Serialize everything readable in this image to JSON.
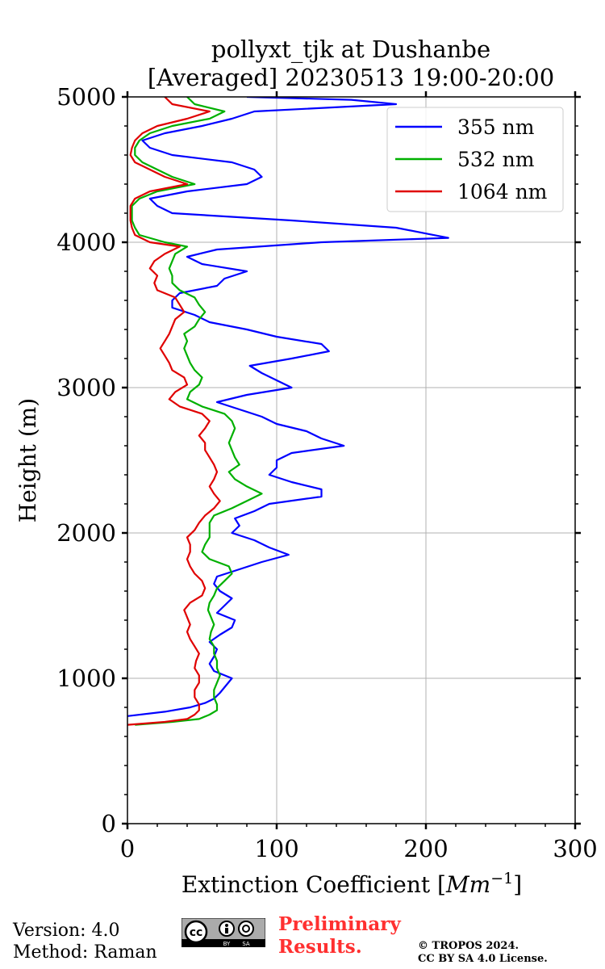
{
  "colors": {
    "s355": "#0000ff",
    "s532": "#00b000",
    "s1064": "#e00000",
    "grid": "#b0b0b0",
    "prelim": "#ff3030"
  },
  "footer": {
    "version": "Version: 4.0",
    "method": "Method: Raman",
    "preliminary_line1": "Preliminary",
    "preliminary_line2": "Results.",
    "copyright_line1": "© TROPOS 2024.",
    "copyright_line2": "CC BY SA 4.0 License.",
    "cc_text": "cc",
    "cc_by": "BY",
    "cc_sa": "SA"
  },
  "chart_data": {
    "type": "line",
    "title": "pollyxt_tjk at Dushanbe",
    "subtitle": "[Averaged] 20230513 19:00-20:00",
    "xlabel_main": "Extinction Coefficient [",
    "xlabel_unit": "Mm",
    "xlabel_exp": "−1",
    "xlabel_end": "]",
    "ylabel": "Height (m)",
    "xlim": [
      0,
      300
    ],
    "ylim": [
      0,
      5000
    ],
    "xticks": [
      0,
      100,
      200,
      300
    ],
    "yticks": [
      0,
      1000,
      2000,
      3000,
      4000,
      5000
    ],
    "grid": true,
    "legend_position": "top-right",
    "series": [
      {
        "name": "355 nm",
        "heights": [
          740,
          770,
          800,
          830,
          860,
          900,
          950,
          1000,
          1050,
          1100,
          1150,
          1200,
          1250,
          1300,
          1350,
          1400,
          1450,
          1500,
          1550,
          1600,
          1650,
          1700,
          1750,
          1800,
          1850,
          1900,
          1950,
          2000,
          2050,
          2100,
          2150,
          2200,
          2250,
          2300,
          2350,
          2400,
          2450,
          2500,
          2550,
          2600,
          2650,
          2700,
          2750,
          2800,
          2850,
          2900,
          2950,
          3000,
          3050,
          3100,
          3150,
          3200,
          3250,
          3300,
          3350,
          3400,
          3450,
          3500,
          3550,
          3600,
          3650,
          3700,
          3750,
          3800,
          3850,
          3900,
          3950,
          4000,
          4030,
          4060,
          4100,
          4150,
          4200,
          4250,
          4300,
          4350,
          4400,
          4450,
          4500,
          4550,
          4600,
          4650,
          4700,
          4750,
          4800,
          4850,
          4900,
          4950,
          4980,
          5000
        ],
        "values": [
          0,
          25,
          42,
          52,
          58,
          62,
          66,
          70,
          58,
          55,
          58,
          60,
          55,
          62,
          70,
          72,
          60,
          65,
          70,
          62,
          58,
          60,
          75,
          90,
          108,
          95,
          85,
          70,
          75,
          72,
          85,
          95,
          130,
          130,
          110,
          95,
          100,
          100,
          110,
          145,
          130,
          120,
          100,
          90,
          75,
          60,
          80,
          110,
          100,
          90,
          82,
          110,
          135,
          130,
          100,
          80,
          55,
          45,
          30,
          30,
          35,
          60,
          65,
          80,
          50,
          40,
          60,
          130,
          215,
          200,
          180,
          110,
          30,
          20,
          15,
          40,
          80,
          90,
          85,
          70,
          30,
          15,
          10,
          25,
          50,
          70,
          85,
          180,
          150,
          80
        ]
      },
      {
        "name": "532 nm",
        "heights": [
          680,
          700,
          720,
          750,
          780,
          820,
          870,
          920,
          970,
          1020,
          1070,
          1120,
          1170,
          1220,
          1270,
          1320,
          1370,
          1420,
          1470,
          1520,
          1570,
          1620,
          1670,
          1720,
          1770,
          1820,
          1870,
          1920,
          1970,
          2020,
          2070,
          2120,
          2170,
          2220,
          2270,
          2320,
          2370,
          2420,
          2470,
          2520,
          2570,
          2620,
          2670,
          2720,
          2770,
          2820,
          2870,
          2920,
          2970,
          3020,
          3070,
          3120,
          3170,
          3220,
          3270,
          3320,
          3370,
          3420,
          3470,
          3520,
          3570,
          3620,
          3670,
          3720,
          3770,
          3820,
          3870,
          3920,
          3970,
          4000,
          4050,
          4100,
          4150,
          4200,
          4250,
          4300,
          4350,
          4400,
          4450,
          4500,
          4550,
          4600,
          4650,
          4700,
          4750,
          4800,
          4850,
          4900,
          4950,
          5000
        ],
        "values": [
          5,
          30,
          48,
          55,
          60,
          60,
          58,
          58,
          60,
          62,
          60,
          60,
          58,
          58,
          55,
          56,
          58,
          56,
          54,
          55,
          58,
          60,
          65,
          70,
          68,
          55,
          50,
          52,
          55,
          55,
          55,
          58,
          70,
          80,
          90,
          80,
          72,
          68,
          75,
          72,
          70,
          68,
          70,
          72,
          70,
          65,
          50,
          40,
          42,
          48,
          50,
          45,
          42,
          40,
          38,
          40,
          38,
          45,
          48,
          52,
          48,
          45,
          35,
          30,
          30,
          28,
          30,
          32,
          40,
          25,
          8,
          5,
          3,
          3,
          3,
          8,
          20,
          45,
          30,
          20,
          10,
          5,
          5,
          8,
          15,
          30,
          55,
          65,
          45,
          40
        ]
      },
      {
        "name": "1064 nm",
        "heights": [
          680,
          700,
          720,
          750,
          780,
          820,
          870,
          920,
          970,
          1020,
          1070,
          1120,
          1170,
          1220,
          1270,
          1320,
          1370,
          1420,
          1470,
          1520,
          1570,
          1620,
          1670,
          1720,
          1770,
          1820,
          1870,
          1920,
          1970,
          2020,
          2070,
          2120,
          2170,
          2220,
          2270,
          2320,
          2370,
          2420,
          2470,
          2520,
          2570,
          2620,
          2670,
          2720,
          2770,
          2820,
          2870,
          2920,
          2970,
          3020,
          3070,
          3120,
          3170,
          3220,
          3270,
          3320,
          3370,
          3420,
          3470,
          3520,
          3570,
          3620,
          3670,
          3720,
          3770,
          3820,
          3870,
          3920,
          3970,
          4000,
          4050,
          4100,
          4150,
          4200,
          4250,
          4300,
          4350,
          4400,
          4450,
          4500,
          4550,
          4600,
          4650,
          4700,
          4750,
          4800,
          4850,
          4900,
          4950,
          5000
        ],
        "values": [
          0,
          25,
          40,
          45,
          48,
          48,
          45,
          45,
          48,
          48,
          45,
          46,
          48,
          45,
          42,
          40,
          42,
          40,
          38,
          42,
          50,
          52,
          50,
          45,
          42,
          40,
          42,
          42,
          40,
          45,
          48,
          52,
          58,
          62,
          58,
          55,
          58,
          60,
          58,
          55,
          52,
          52,
          48,
          52,
          55,
          50,
          35,
          28,
          32,
          40,
          38,
          30,
          28,
          25,
          22,
          25,
          28,
          30,
          32,
          38,
          35,
          32,
          20,
          18,
          20,
          15,
          18,
          25,
          35,
          15,
          5,
          3,
          2,
          2,
          2,
          5,
          15,
          40,
          25,
          15,
          5,
          2,
          3,
          5,
          10,
          20,
          40,
          55,
          30,
          25
        ]
      }
    ]
  }
}
